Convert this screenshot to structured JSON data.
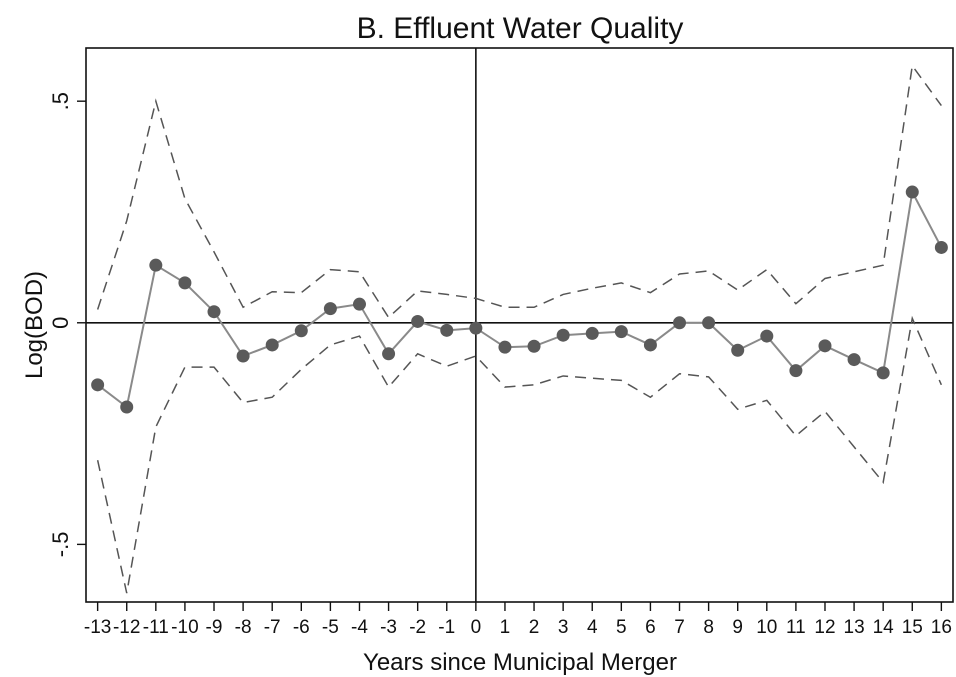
{
  "chart_data": {
    "type": "line",
    "title": "B. Effluent Water Quality",
    "xlabel": "Years since Municipal Merger",
    "ylabel": "Log(BOD)",
    "x": [
      -13,
      -12,
      -11,
      -10,
      -9,
      -8,
      -7,
      -6,
      -5,
      -4,
      -3,
      -2,
      -1,
      0,
      1,
      2,
      3,
      4,
      5,
      6,
      7,
      8,
      9,
      10,
      11,
      12,
      13,
      14,
      15,
      16
    ],
    "x_tick_labels": [
      "-13",
      "-12",
      "-11",
      "-10",
      "-9",
      "-8",
      "-7",
      "-6",
      "-5",
      "-4",
      "-3",
      "-2",
      "-1",
      "0",
      "1",
      "2",
      "3",
      "4",
      "5",
      "6",
      "7",
      "8",
      "9",
      "10",
      "11",
      "12",
      "13",
      "14",
      "15",
      "16"
    ],
    "y_ticks": [
      -0.5,
      0,
      0.5
    ],
    "y_tick_labels": [
      "-.5",
      "0",
      ".5"
    ],
    "xlim": [
      -13.4,
      16.4
    ],
    "ylim": [
      -0.63,
      0.62
    ],
    "reference_lines": {
      "x": 0,
      "y": 0
    },
    "grid": false,
    "series": [
      {
        "role": "estimate",
        "style": "solid-with-markers",
        "color": "#8a8a8a",
        "marker_color": "#5a5a5a",
        "values": [
          -0.14,
          -0.19,
          0.13,
          0.09,
          0.025,
          -0.075,
          -0.05,
          -0.018,
          0.032,
          0.042,
          -0.07,
          0.003,
          -0.017,
          -0.012,
          -0.055,
          -0.053,
          -0.028,
          -0.024,
          -0.02,
          -0.05,
          0.0,
          0.0,
          -0.062,
          -0.03,
          -0.108,
          -0.052,
          -0.083,
          -0.113,
          0.295,
          0.17
        ]
      },
      {
        "role": "upper-ci",
        "style": "dashed",
        "color": "#555555",
        "values": [
          0.03,
          0.23,
          0.5,
          0.28,
          0.16,
          0.035,
          0.07,
          0.068,
          0.12,
          0.115,
          0.012,
          0.072,
          0.064,
          0.055,
          0.035,
          0.035,
          0.064,
          0.078,
          0.09,
          0.068,
          0.11,
          0.117,
          0.074,
          0.12,
          0.043,
          0.1,
          0.115,
          0.13,
          0.58,
          0.49
        ]
      },
      {
        "role": "lower-ci",
        "style": "dashed",
        "color": "#555555",
        "values": [
          -0.31,
          -0.61,
          -0.235,
          -0.1,
          -0.1,
          -0.18,
          -0.168,
          -0.105,
          -0.05,
          -0.03,
          -0.145,
          -0.07,
          -0.098,
          -0.075,
          -0.145,
          -0.14,
          -0.12,
          -0.125,
          -0.13,
          -0.168,
          -0.115,
          -0.122,
          -0.195,
          -0.175,
          -0.255,
          -0.2,
          -0.28,
          -0.36,
          0.01,
          -0.14
        ]
      }
    ]
  }
}
